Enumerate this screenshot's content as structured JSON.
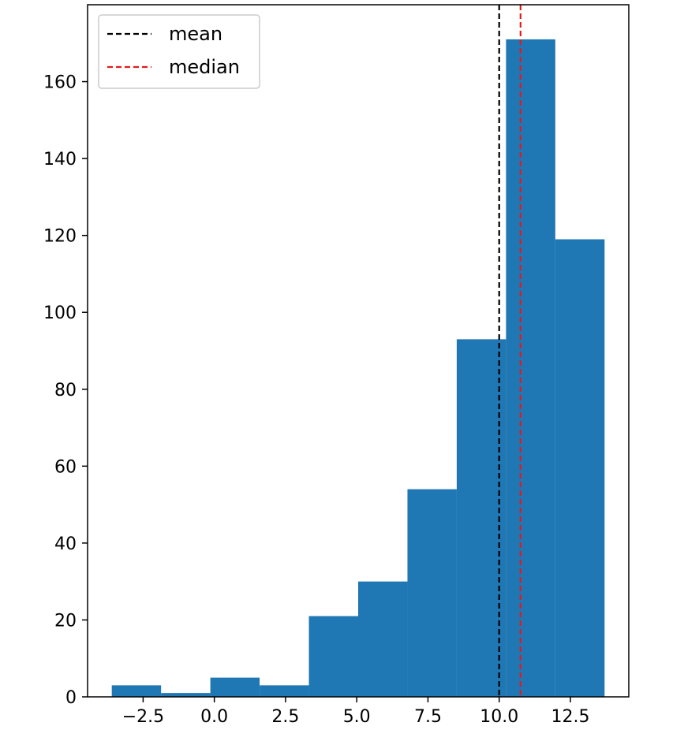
{
  "chart_data": {
    "type": "bar",
    "subtype": "histogram",
    "title": "",
    "xlabel": "",
    "ylabel": "",
    "xlim": [
      -4.45,
      14.55
    ],
    "ylim": [
      0,
      180
    ],
    "x_ticks": [
      -2.5,
      0.0,
      2.5,
      5.0,
      7.5,
      10.0,
      12.5
    ],
    "x_tick_labels": [
      "−2.5",
      "0.0",
      "2.5",
      "5.0",
      "7.5",
      "10.0",
      "12.5"
    ],
    "y_ticks": [
      0,
      20,
      40,
      60,
      80,
      100,
      120,
      140,
      160
    ],
    "y_tick_labels": [
      "0",
      "20",
      "40",
      "60",
      "80",
      "100",
      "120",
      "140",
      "160"
    ],
    "bin_edges": [
      -3.6,
      -1.87,
      -0.14,
      1.59,
      3.32,
      5.05,
      6.78,
      8.51,
      10.24,
      11.97,
      13.7
    ],
    "counts": [
      3,
      1,
      5,
      3,
      21,
      30,
      54,
      93,
      171,
      119
    ],
    "bar_color": "#1f77b4",
    "grid": false,
    "reference_lines": [
      {
        "name": "mean",
        "x": 10.0,
        "color": "#000000",
        "style": "dashed"
      },
      {
        "name": "median",
        "x": 10.75,
        "color": "#e41a1c",
        "style": "dashed"
      }
    ],
    "legend": {
      "position": "upper-left",
      "entries": [
        {
          "label": "mean",
          "color": "#000000",
          "style": "dashed"
        },
        {
          "label": "median",
          "color": "#e41a1c",
          "style": "dashed"
        }
      ]
    }
  }
}
